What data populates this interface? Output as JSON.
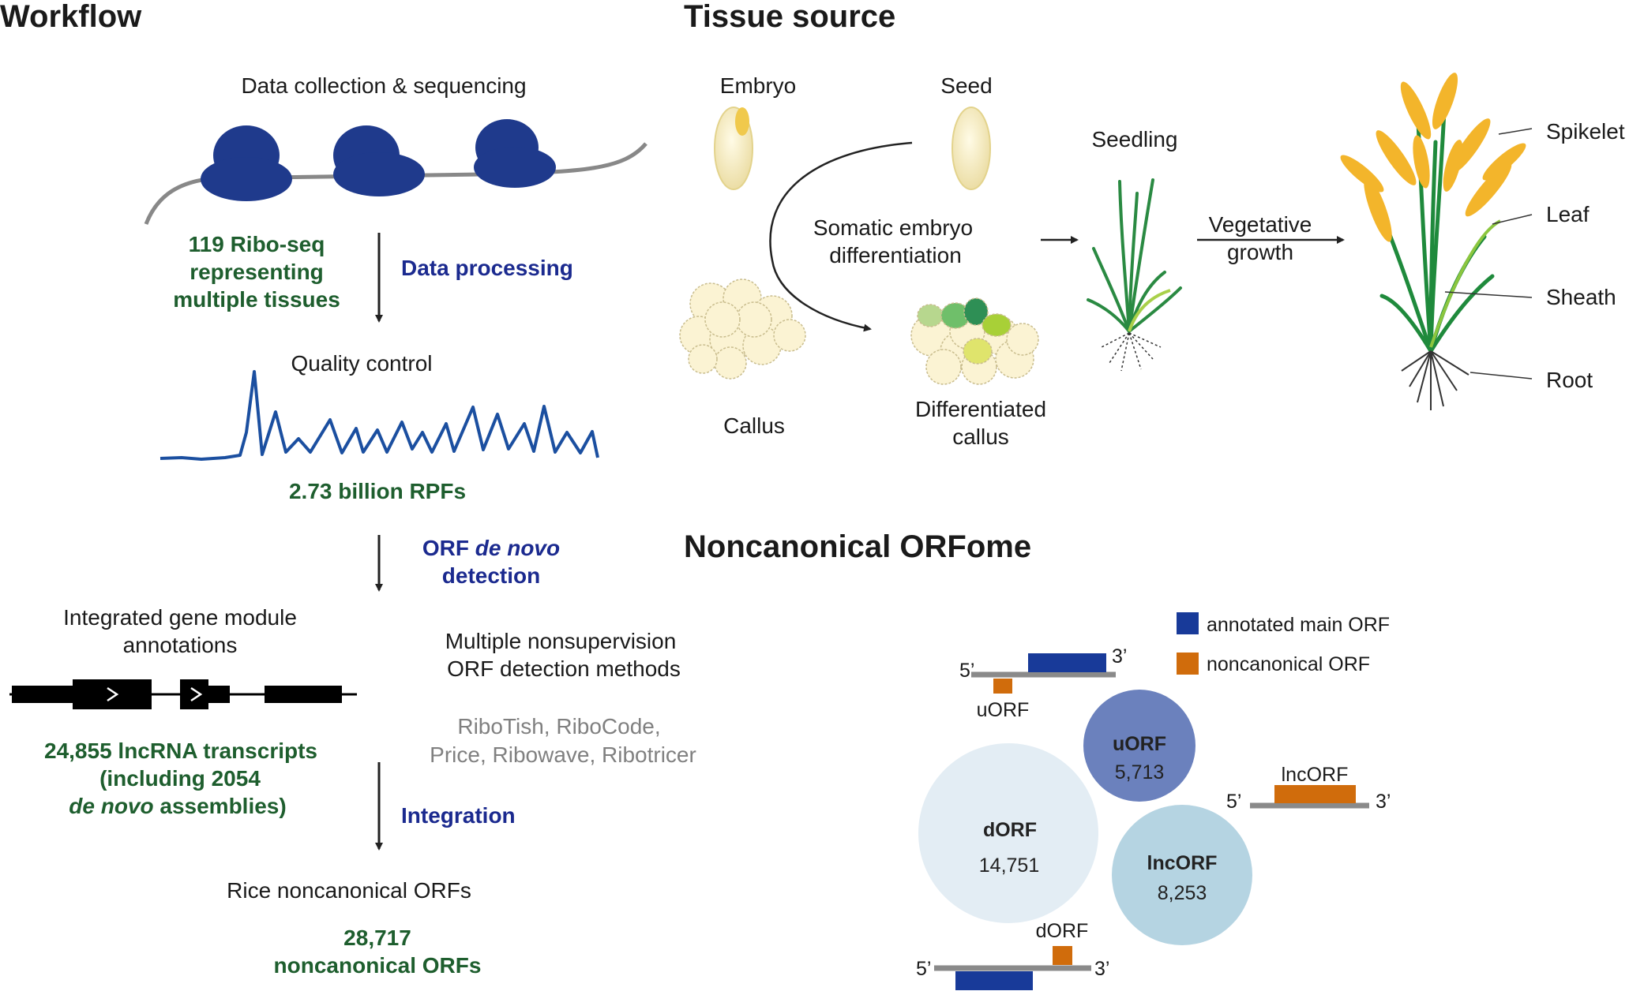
{
  "workflow": {
    "heading": "Workflow",
    "data_collection": "Data collection & sequencing",
    "riboseq_lines": [
      "119 Ribo-seq",
      "representing",
      "multiple tissues"
    ],
    "data_processing": "Data processing",
    "quality_control": "Quality control",
    "rpfs": "2.73 billion RPFs",
    "orf_detection_prefix": "ORF ",
    "orf_detection_italic": "de novo",
    "orf_detection_line2": "detection",
    "gene_module_lines": [
      "Integrated gene module",
      "annotations"
    ],
    "methods_lines": [
      "Multiple nonsupervision",
      "ORF detection methods"
    ],
    "tools_lines": [
      "RiboTish, RiboCode,",
      "Price, Ribowave, Ribotricer"
    ],
    "lncrna_line1": "24,855 lncRNA transcripts",
    "lncrna_line2": "(including 2054",
    "lncrna_line3_italic": "de novo",
    "lncrna_line3_rest": " assemblies)",
    "integration": "Integration",
    "rice_orfs": "Rice noncanonical ORFs",
    "total_lines": [
      "28,717",
      "noncanonical ORFs"
    ]
  },
  "tissue_source": {
    "heading": "Tissue source",
    "embryo": "Embryo",
    "seed": "Seed",
    "seedling": "Seedling",
    "somatic_lines": [
      "Somatic embryo",
      "differentiation"
    ],
    "vegetative_lines": [
      "Vegetative",
      "growth"
    ],
    "callus": "Callus",
    "diff_callus_lines": [
      "Differentiated",
      "callus"
    ],
    "plant_parts": [
      "Spikelet",
      "Leaf",
      "Sheath",
      "Root"
    ]
  },
  "orfome": {
    "heading": "Noncanonical ORFome",
    "legend": [
      {
        "label": "annotated main ORF",
        "color": "#183a99"
      },
      {
        "label": "noncanonical ORF",
        "color": "#d06c0c"
      }
    ],
    "prime5": "5’",
    "prime3": "3’",
    "uorf_label": "uORF",
    "lncorf_label": "lncORF",
    "dorf_label": "dORF",
    "bubbles": [
      {
        "name": "uORF",
        "count": "5,713",
        "color": "#6b81bd"
      },
      {
        "name": "dORF",
        "count": "14,751",
        "color": "#e3edf4"
      },
      {
        "name": "lncORF",
        "count": "8,253",
        "color": "#b5d4e2"
      }
    ]
  }
}
